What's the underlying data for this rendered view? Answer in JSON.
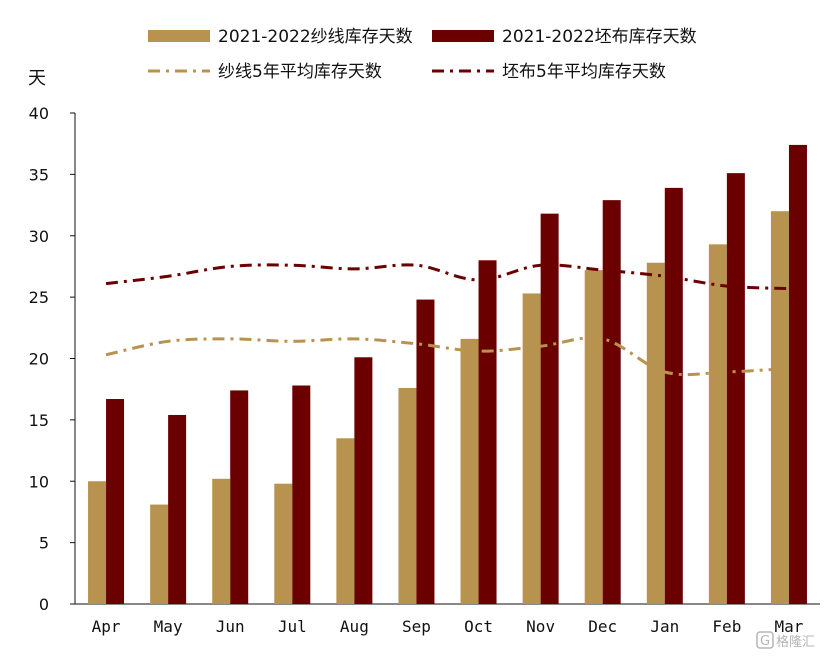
{
  "chart_data": {
    "type": "bar",
    "ylabel": "天",
    "ylim": [
      0,
      40
    ],
    "yticks": [
      0,
      5,
      10,
      15,
      20,
      25,
      30,
      35,
      40
    ],
    "categories": [
      "Apr",
      "May",
      "Jun",
      "Jul",
      "Aug",
      "Sep",
      "Oct",
      "Nov",
      "Dec",
      "Jan",
      "Feb",
      "Mar"
    ],
    "series": [
      {
        "name": "2021-2022纱线库存天数",
        "kind": "bar",
        "color": "#b8934f",
        "values": [
          10.0,
          8.1,
          10.2,
          9.8,
          13.5,
          17.6,
          21.6,
          25.3,
          27.2,
          27.8,
          29.3,
          32.0
        ]
      },
      {
        "name": "2021-2022坯布库存天数",
        "kind": "bar",
        "color": "#6b0000",
        "values": [
          16.7,
          15.4,
          17.4,
          17.8,
          20.1,
          24.8,
          28.0,
          31.8,
          32.9,
          33.9,
          35.1,
          37.4
        ]
      },
      {
        "name": "纱线5年平均库存天数",
        "kind": "line",
        "style": "dash-dot",
        "color": "#b8934f",
        "values": [
          20.3,
          21.4,
          21.6,
          21.4,
          21.6,
          21.2,
          20.6,
          21.0,
          21.6,
          18.9,
          18.9,
          19.2
        ]
      },
      {
        "name": "坯布5年平均库存天数",
        "kind": "line",
        "style": "dash-dot",
        "color": "#6b0000",
        "values": [
          26.1,
          26.7,
          27.5,
          27.6,
          27.3,
          27.6,
          26.4,
          27.6,
          27.2,
          26.7,
          25.9,
          25.7
        ]
      }
    ],
    "legend": "top",
    "grid": false
  },
  "watermark": {
    "text": "格隆汇",
    "icon": "gelonghui-logo-icon"
  }
}
